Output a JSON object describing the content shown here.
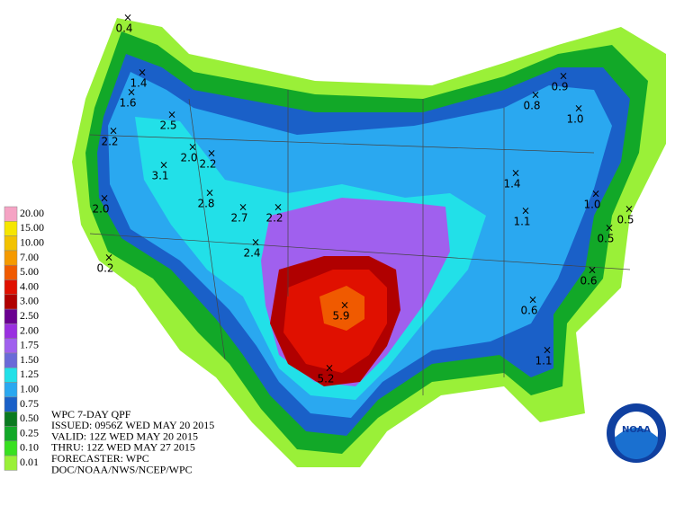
{
  "legend": {
    "labels": [
      "20.00",
      "15.00",
      "10.00",
      "7.00",
      "5.00",
      "4.00",
      "3.00",
      "2.50",
      "2.00",
      "1.75",
      "1.50",
      "1.25",
      "1.00",
      "0.75",
      "0.50",
      "0.25",
      "0.10",
      "0.01"
    ],
    "colors": [
      "#f5a3c4",
      "#f6e600",
      "#f2c200",
      "#f59a00",
      "#f05a00",
      "#e01000",
      "#b00000",
      "#6a0090",
      "#9a30e0",
      "#a060ee",
      "#6a6ad8",
      "#22e0e8",
      "#2aa8f0",
      "#1a60c8",
      "#0a7a20",
      "#12a828",
      "#38e020",
      "#9af038"
    ]
  },
  "info": {
    "lines": [
      "WPC 7-DAY QPF",
      "ISSUED: 0956Z WED MAY 20 2015",
      "VALID: 12Z WED MAY 20 2015",
      "THRU: 12Z WED MAY 27 2015",
      "FORECASTER: WPC",
      "DOC/NOAA/NWS/NCEP/WPC"
    ]
  },
  "points": [
    "0.4",
    "1.4",
    "1.6",
    "2.5",
    "2.2",
    "2.0",
    "2.2",
    "3.1",
    "2.8",
    "2.7",
    "2.2",
    "2.0",
    "2.4",
    "0.2",
    "5.9",
    "5.2",
    "0.9",
    "0.8",
    "1.0",
    "1.4",
    "1.1",
    "1.0",
    "0.5",
    "0.5",
    "0.6",
    "0.6",
    "1.1"
  ],
  "logo": {
    "text": "NOAA"
  }
}
